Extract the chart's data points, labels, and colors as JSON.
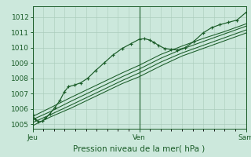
{
  "title": "",
  "xlabel": "Pression niveau de la mer( hPa )",
  "ylabel": "",
  "bg_color": "#cce8dc",
  "grid_color": "#aaccbb",
  "line_color": "#1a5c28",
  "marker_color": "#1a5c28",
  "ylim": [
    1004.7,
    1012.7
  ],
  "yticks": [
    1005,
    1006,
    1007,
    1008,
    1009,
    1010,
    1011,
    1012
  ],
  "xtick_labels": [
    "Jeu",
    "Ven",
    "Sam"
  ],
  "xtick_positions": [
    0.0,
    0.5,
    1.0
  ],
  "day_lines": [
    0.0,
    0.5,
    1.0
  ],
  "series1_x": [
    0.0,
    0.012,
    0.028,
    0.045,
    0.062,
    0.082,
    0.105,
    0.128,
    0.148,
    0.168,
    0.195,
    0.225,
    0.258,
    0.295,
    0.335,
    0.375,
    0.42,
    0.46,
    0.5,
    0.525,
    0.548,
    0.568,
    0.59,
    0.618,
    0.648,
    0.678,
    0.715,
    0.755,
    0.798,
    0.838,
    0.878,
    0.918,
    0.958,
    1.0
  ],
  "values1": [
    1005.6,
    1005.3,
    1005.15,
    1005.2,
    1005.4,
    1005.7,
    1006.1,
    1006.55,
    1007.1,
    1007.45,
    1007.55,
    1007.7,
    1008.0,
    1008.5,
    1009.0,
    1009.5,
    1009.95,
    1010.25,
    1010.55,
    1010.58,
    1010.5,
    1010.35,
    1010.15,
    1009.95,
    1009.88,
    1009.85,
    1010.0,
    1010.4,
    1010.95,
    1011.3,
    1011.5,
    1011.65,
    1011.8,
    1012.3
  ],
  "series2_x": [
    0.0,
    0.08,
    0.18,
    0.3,
    0.42,
    0.5,
    0.6,
    0.7,
    0.8,
    0.9,
    1.0
  ],
  "values2": [
    1005.3,
    1005.8,
    1006.5,
    1007.3,
    1008.1,
    1008.6,
    1009.3,
    1009.9,
    1010.4,
    1010.9,
    1011.4
  ],
  "series3_x": [
    0.0,
    0.08,
    0.18,
    0.3,
    0.42,
    0.5,
    0.6,
    0.7,
    0.8,
    0.9,
    1.0
  ],
  "values3": [
    1005.1,
    1005.6,
    1006.25,
    1007.05,
    1007.85,
    1008.35,
    1009.05,
    1009.65,
    1010.15,
    1010.65,
    1011.15
  ],
  "series4_x": [
    0.0,
    0.08,
    0.18,
    0.3,
    0.42,
    0.5,
    0.6,
    0.7,
    0.8,
    0.9,
    1.0
  ],
  "values4": [
    1004.9,
    1005.45,
    1006.05,
    1006.85,
    1007.65,
    1008.1,
    1008.8,
    1009.45,
    1009.95,
    1010.45,
    1010.95
  ],
  "series5_x": [
    0.0,
    0.08,
    0.18,
    0.3,
    0.42,
    0.5,
    0.6,
    0.7,
    0.8,
    0.9,
    1.0
  ],
  "values5": [
    1005.5,
    1006.05,
    1006.75,
    1007.55,
    1008.35,
    1008.85,
    1009.55,
    1010.1,
    1010.6,
    1011.05,
    1011.55
  ],
  "xlabel_fontsize": 7.5,
  "tick_fontsize": 6.5
}
